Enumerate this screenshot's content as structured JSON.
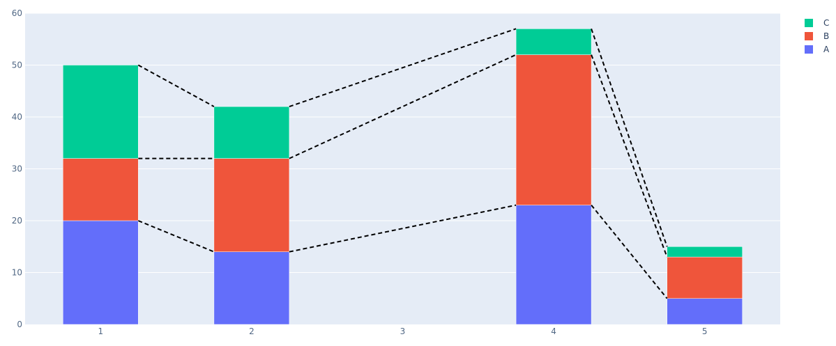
{
  "chart_data": {
    "type": "bar",
    "stacked": true,
    "x": [
      1,
      2,
      3,
      4,
      5
    ],
    "series": [
      {
        "name": "A",
        "color": "#636efa",
        "values": [
          20,
          14,
          null,
          23,
          5
        ]
      },
      {
        "name": "B",
        "color": "#ef553b",
        "values": [
          12,
          18,
          null,
          29,
          8
        ]
      },
      {
        "name": "C",
        "color": "#00cc96",
        "values": [
          18,
          10,
          null,
          5,
          2
        ]
      }
    ],
    "connector_lines": {
      "style": "dashed",
      "color": "#000000"
    },
    "title": "",
    "xlabel": "",
    "ylabel": "",
    "xlim": [
      0.5,
      5.5
    ],
    "ylim": [
      0,
      60
    ],
    "yticks": [
      0,
      10,
      20,
      30,
      40,
      50,
      60
    ],
    "xticks": [
      1,
      2,
      3,
      4,
      5
    ],
    "grid": true,
    "plot_background": "#e5ecf6",
    "legend": {
      "position": "top-right",
      "order": [
        "C",
        "B",
        "A"
      ]
    }
  }
}
